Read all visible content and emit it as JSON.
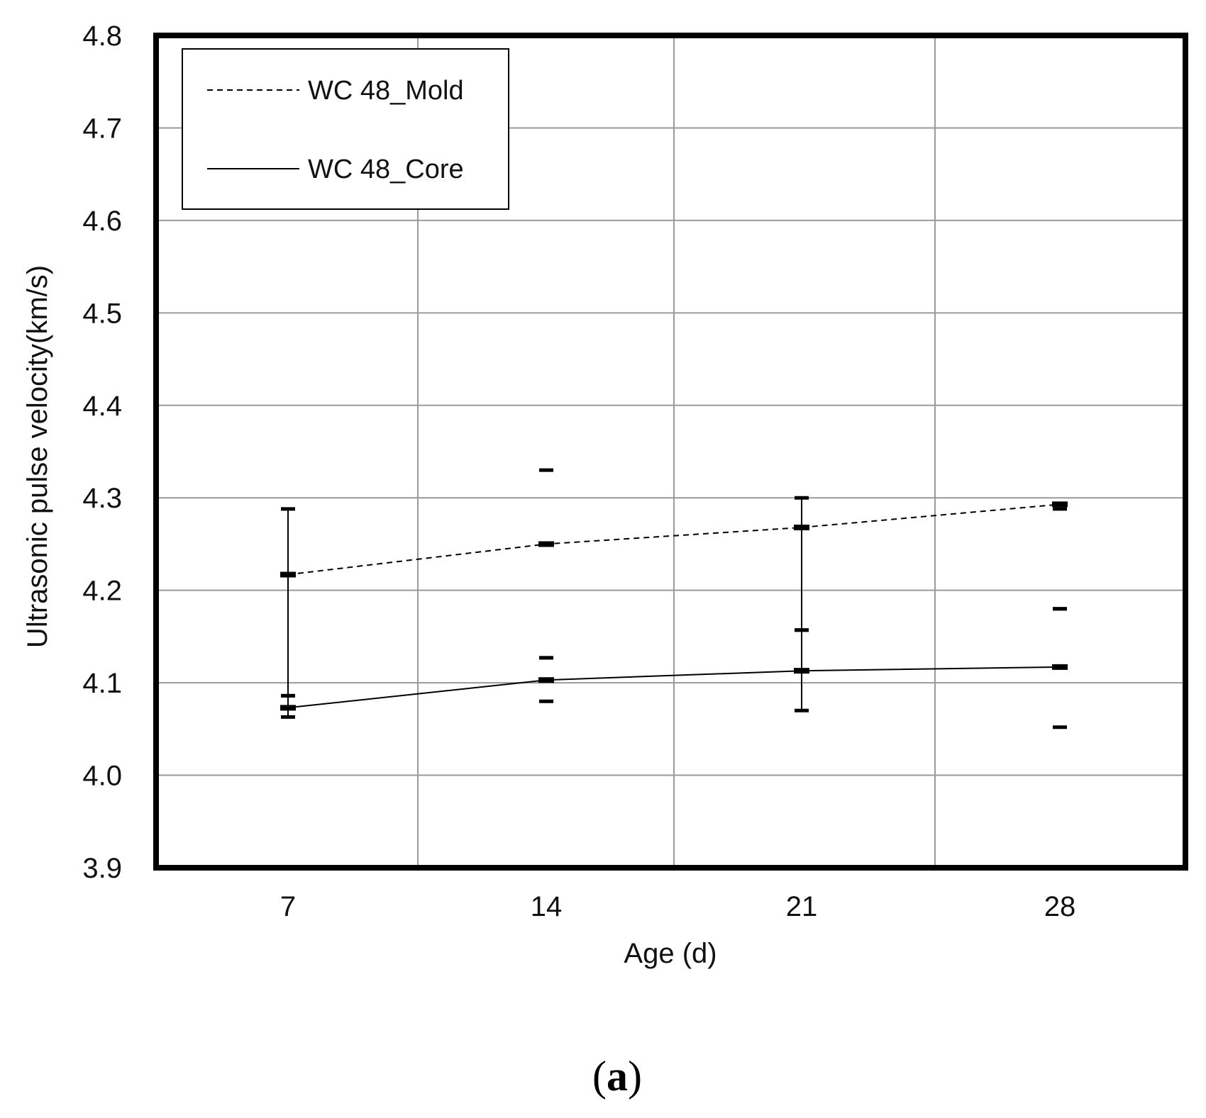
{
  "chart_data": {
    "type": "line",
    "title": "",
    "xlabel": "Age (d)",
    "ylabel": "Ultrasonic pulse velocity(km/s)",
    "categories": [
      "7",
      "14",
      "21",
      "28"
    ],
    "x": [
      7,
      14,
      21,
      28
    ],
    "ylim": [
      3.9,
      4.8
    ],
    "y_ticks": [
      "3.9",
      "4.0",
      "4.1",
      "4.2",
      "4.3",
      "4.4",
      "4.5",
      "4.6",
      "4.7",
      "4.8"
    ],
    "grid": true,
    "legend_position": "top-left",
    "series": [
      {
        "name": "WC 48_Mold",
        "line_style": "dashed",
        "values": [
          4.217,
          4.25,
          4.268,
          4.293
        ],
        "err_max": [
          4.288,
          4.33,
          4.3,
          4.288
        ],
        "err_min": [
          4.086,
          4.127,
          4.157,
          4.18
        ]
      },
      {
        "name": "WC 48_Core",
        "line_style": "solid",
        "values": [
          4.073,
          4.103,
          4.113,
          4.117
        ],
        "err_max": [
          4.086,
          4.127,
          4.157,
          4.18
        ],
        "err_min": [
          4.063,
          4.08,
          4.07,
          4.052
        ]
      }
    ]
  },
  "caption": {
    "open": "(",
    "letter": "a",
    "close": ")"
  }
}
